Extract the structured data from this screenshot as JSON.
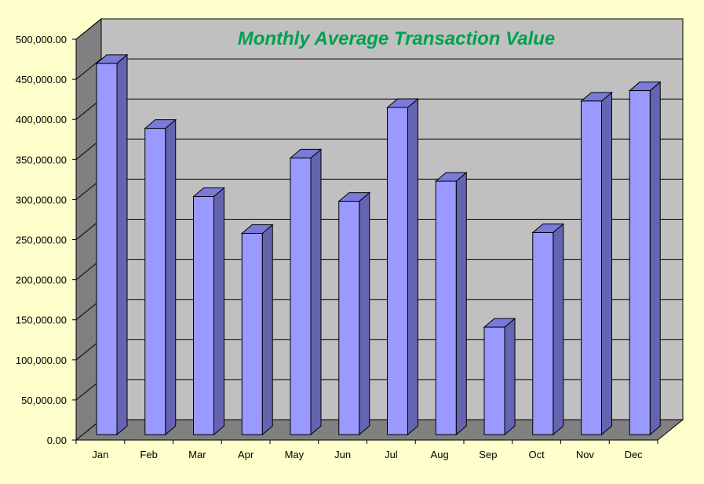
{
  "chart_data": {
    "type": "bar",
    "title": "Monthly  Average Transaction Value",
    "categories": [
      "Jan",
      "Feb",
      "Mar",
      "Apr",
      "May",
      "Jun",
      "Jul",
      "Aug",
      "Sep",
      "Oct",
      "Nov",
      "Dec"
    ],
    "values": [
      463000,
      382000,
      297000,
      251000,
      345000,
      291000,
      408000,
      316000,
      134000,
      252000,
      416000,
      429000
    ],
    "yticks": [
      "0.00",
      "50,000.00",
      "100,000.00",
      "150,000.00",
      "200,000.00",
      "250,000.00",
      "300,000.00",
      "350,000.00",
      "400,000.00",
      "450,000.00",
      "500,000.00"
    ],
    "ylim": [
      0,
      500000
    ],
    "grid": true,
    "legend": "none",
    "style": "3d",
    "colors": {
      "background": "#ffffcc",
      "plot_wall": "#c0c0c0",
      "side_wall": "#808080",
      "floor": "#808080",
      "bar_front": "#9999ff",
      "bar_side": "#6464b0",
      "bar_top": "#7a7ad8",
      "title": "#00a050"
    }
  }
}
